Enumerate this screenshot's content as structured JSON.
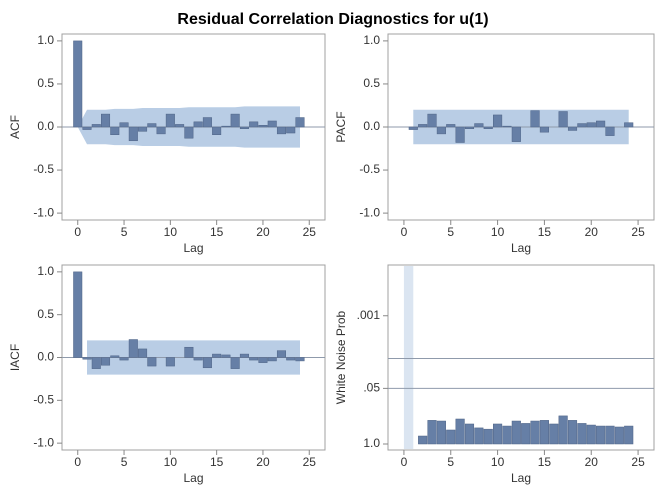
{
  "title": "Residual Correlation Diagnostics for u(1)",
  "chart_data": [
    {
      "type": "bar",
      "ylabel": "ACF",
      "xlabel": "Lag",
      "color": "#667fa6",
      "band_color": "#b9cde5",
      "x": [
        0,
        1,
        2,
        3,
        4,
        5,
        6,
        7,
        8,
        9,
        10,
        11,
        12,
        13,
        14,
        15,
        16,
        17,
        18,
        19,
        20,
        21,
        22,
        23,
        24
      ],
      "values": [
        1.0,
        -0.03,
        0.03,
        0.15,
        -0.09,
        0.05,
        -0.16,
        -0.05,
        0.04,
        -0.08,
        0.15,
        0.03,
        -0.13,
        0.06,
        0.11,
        -0.09,
        0.01,
        0.15,
        -0.02,
        0.06,
        0.02,
        0.07,
        -0.08,
        -0.07,
        0.11
      ],
      "band": {
        "x": [
          0,
          1,
          2,
          3,
          4,
          5,
          6,
          7,
          8,
          9,
          10,
          11,
          12,
          13,
          14,
          15,
          16,
          17,
          18,
          19,
          20,
          21,
          22,
          23,
          24
        ],
        "upper": [
          0,
          0.2,
          0.2,
          0.2,
          0.21,
          0.21,
          0.21,
          0.22,
          0.22,
          0.22,
          0.22,
          0.22,
          0.23,
          0.23,
          0.23,
          0.23,
          0.23,
          0.23,
          0.24,
          0.24,
          0.24,
          0.24,
          0.24,
          0.24,
          0.24
        ],
        "lower": [
          0,
          -0.2,
          -0.2,
          -0.2,
          -0.21,
          -0.21,
          -0.21,
          -0.22,
          -0.22,
          -0.22,
          -0.22,
          -0.22,
          -0.23,
          -0.23,
          -0.23,
          -0.23,
          -0.23,
          -0.23,
          -0.24,
          -0.24,
          -0.24,
          -0.24,
          -0.24,
          -0.24,
          -0.24
        ]
      },
      "reference_lines": [
        0
      ],
      "xlim": [
        -1.7,
        26.7
      ],
      "xticks": [
        0,
        5,
        10,
        15,
        20,
        25
      ],
      "ylim": [
        -1.08,
        1.08
      ],
      "yticks": [
        {
          "value": -1.0,
          "label": "-1.0"
        },
        {
          "value": -0.5,
          "label": "-0.5"
        },
        {
          "value": 0.0,
          "label": "0.0"
        },
        {
          "value": 0.5,
          "label": "0.5"
        },
        {
          "value": 1.0,
          "label": "1.0"
        }
      ]
    },
    {
      "type": "bar",
      "ylabel": "PACF",
      "xlabel": "Lag",
      "color": "#667fa6",
      "band_color": "#b9cde5",
      "x": [
        1,
        2,
        3,
        4,
        5,
        6,
        7,
        8,
        9,
        10,
        11,
        12,
        13,
        14,
        15,
        16,
        17,
        18,
        19,
        20,
        21,
        22,
        23,
        24
      ],
      "values": [
        -0.03,
        0.03,
        0.15,
        -0.08,
        0.03,
        -0.18,
        -0.02,
        0.04,
        -0.02,
        0.14,
        0.01,
        -0.17,
        0.0,
        0.19,
        -0.06,
        0.0,
        0.18,
        -0.04,
        0.04,
        0.05,
        0.07,
        -0.1,
        0.0,
        0.05
      ],
      "band": {
        "x": [
          1,
          24
        ],
        "upper": [
          0.2,
          0.2
        ],
        "lower": [
          -0.2,
          -0.2
        ]
      },
      "reference_lines": [
        0
      ],
      "xlim": [
        -1.7,
        26.7
      ],
      "xticks": [
        0,
        5,
        10,
        15,
        20,
        25
      ],
      "ylim": [
        -1.08,
        1.08
      ],
      "yticks": [
        {
          "value": -1.0,
          "label": "-1.0"
        },
        {
          "value": -0.5,
          "label": "-0.5"
        },
        {
          "value": 0.0,
          "label": "0.0"
        },
        {
          "value": 0.5,
          "label": "0.5"
        },
        {
          "value": 1.0,
          "label": "1.0"
        }
      ]
    },
    {
      "type": "bar",
      "ylabel": "IACF",
      "xlabel": "Lag",
      "color": "#667fa6",
      "band_color": "#b9cde5",
      "x": [
        0,
        1,
        2,
        3,
        4,
        5,
        6,
        7,
        8,
        9,
        10,
        11,
        12,
        13,
        14,
        15,
        16,
        17,
        18,
        19,
        20,
        21,
        22,
        23,
        24
      ],
      "values": [
        1.0,
        -0.02,
        -0.13,
        -0.09,
        0.02,
        -0.03,
        0.21,
        0.1,
        -0.1,
        0.0,
        -0.1,
        0.0,
        0.12,
        -0.03,
        -0.12,
        0.04,
        0.03,
        -0.13,
        0.04,
        -0.03,
        -0.06,
        -0.04,
        0.08,
        -0.03,
        -0.04
      ],
      "band": {
        "x": [
          1,
          24
        ],
        "upper": [
          0.2,
          0.2
        ],
        "lower": [
          -0.2,
          -0.2
        ]
      },
      "reference_lines": [
        0
      ],
      "xlim": [
        -1.7,
        26.7
      ],
      "xticks": [
        0,
        5,
        10,
        15,
        20,
        25
      ],
      "ylim": [
        -1.08,
        1.08
      ],
      "yticks": [
        {
          "value": -1.0,
          "label": "-1.0"
        },
        {
          "value": -0.5,
          "label": "-0.5"
        },
        {
          "value": 0.0,
          "label": "0.0"
        },
        {
          "value": 0.5,
          "label": "0.5"
        },
        {
          "value": 1.0,
          "label": "1.0"
        }
      ]
    },
    {
      "type": "bar",
      "ylabel": "White Noise Prob",
      "xlabel": "Lag",
      "color": "#667fa6",
      "shaded_color": "#dbe5f1",
      "ylog": true,
      "x": [
        2,
        3,
        4,
        5,
        6,
        7,
        8,
        9,
        10,
        11,
        12,
        13,
        14,
        15,
        16,
        17,
        18,
        19,
        20,
        21,
        22,
        23,
        24
      ],
      "values": [
        0.65,
        0.28,
        0.29,
        0.47,
        0.26,
        0.34,
        0.42,
        0.45,
        0.34,
        0.38,
        0.29,
        0.33,
        0.29,
        0.28,
        0.34,
        0.22,
        0.28,
        0.33,
        0.36,
        0.38,
        0.38,
        0.4,
        0.38
      ],
      "shaded_lags": [
        0,
        1
      ],
      "reference_lines": [
        0.01,
        0.05
      ],
      "xlim": [
        -1.7,
        26.7
      ],
      "xticks": [
        0,
        5,
        10,
        15,
        20,
        25
      ],
      "ylim": [
        1,
        0.0001
      ],
      "yticks": [
        {
          "value": 0.001,
          "label": ".001"
        },
        {
          "value": 0.05,
          "label": ".05"
        },
        {
          "value": 1,
          "label": "1.0"
        }
      ]
    }
  ]
}
